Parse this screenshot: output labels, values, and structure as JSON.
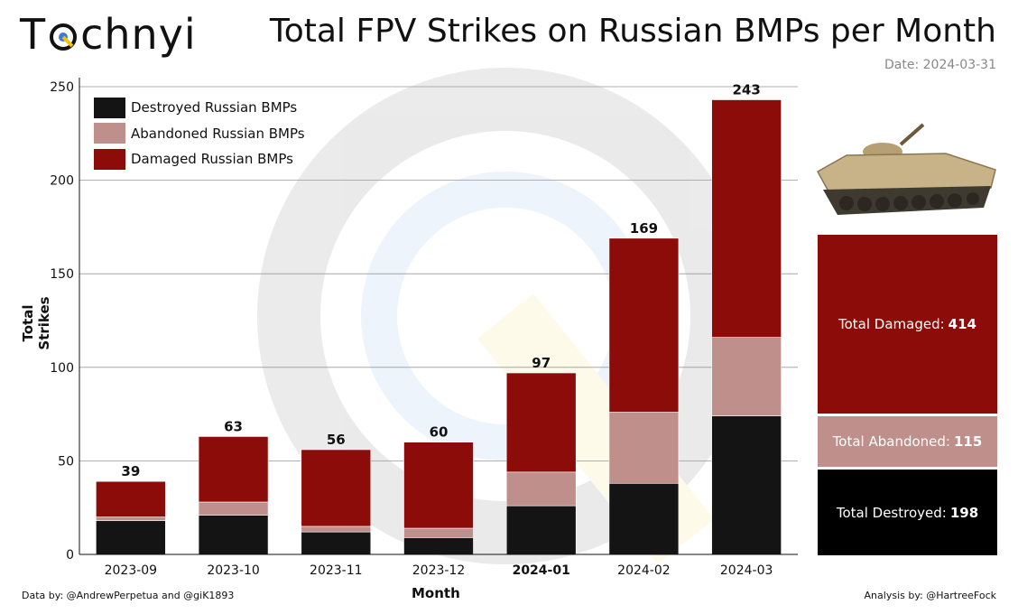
{
  "brand": {
    "logo_text_left": "T",
    "logo_text_right": "chnyi"
  },
  "header": {
    "title": "Total FPV Strikes on Russian BMPs per Month",
    "date": "Date: 2024-03-31"
  },
  "chart_data": {
    "type": "bar",
    "stacked": true,
    "title": "Total FPV Strikes on Russian BMPs per Month",
    "xlabel": "Month",
    "ylabel": "Total Strikes",
    "ylim": [
      0,
      250
    ],
    "yticks": [
      0,
      50,
      100,
      150,
      200,
      250
    ],
    "categories": [
      "2023-09",
      "2023-10",
      "2023-11",
      "2023-12",
      "2024-01",
      "2024-02",
      "2024-03"
    ],
    "series": [
      {
        "name": "Destroyed Russian BMPs",
        "color": "#141414",
        "values": [
          18,
          21,
          12,
          9,
          26,
          38,
          74
        ]
      },
      {
        "name": "Abandoned Russian BMPs",
        "color": "#bf8f8c",
        "values": [
          2,
          7,
          3,
          5,
          18,
          38,
          42
        ]
      },
      {
        "name": "Damaged Russian BMPs",
        "color": "#8b0c08",
        "values": [
          19,
          35,
          41,
          46,
          53,
          93,
          127
        ]
      }
    ],
    "totals": [
      39,
      63,
      56,
      60,
      97,
      169,
      243
    ],
    "grid": true,
    "legend_position": "top-left"
  },
  "summary": {
    "damaged": {
      "label": "Total Damaged:",
      "value": "414",
      "color": "#8b0c08"
    },
    "abandoned": {
      "label": "Total Abandoned:",
      "value": "115",
      "color": "#bf8f8c"
    },
    "destroyed": {
      "label": "Total Destroyed:",
      "value": "198",
      "color": "#000000"
    }
  },
  "footer": {
    "data_credit": "Data by: @AndrewPerpetua and @giK1893",
    "analysis_credit": "Analysis by: @HartreeFock"
  }
}
